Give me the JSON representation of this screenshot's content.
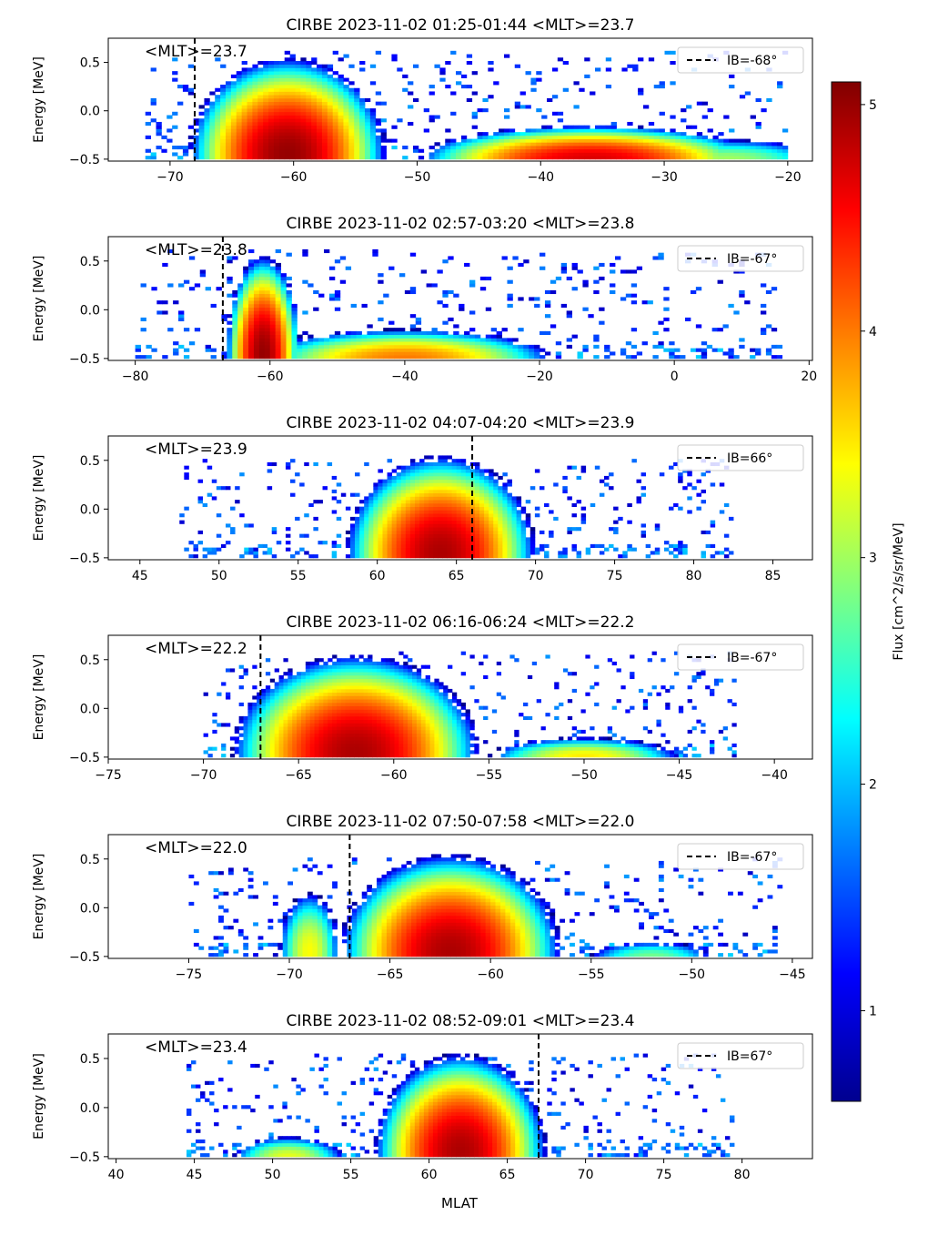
{
  "figure": {
    "shared_xlabel": "MLAT",
    "ylabel": "Energy [MeV]",
    "colorbar": {
      "label": "Flux [cm^2/s/sr/MeV]",
      "ticks": [
        "1",
        "2",
        "3",
        "4",
        "5"
      ],
      "tick_values": [
        1,
        2,
        3,
        4,
        5
      ],
      "range": [
        0.6,
        5.1
      ],
      "colormap": "jet"
    },
    "colors": {
      "ib_line": "#000000",
      "axes": "#000000",
      "background": "#ffffff"
    }
  },
  "chart_data": [
    {
      "type": "heatmap",
      "title": "CIRBE 2023-11-02 01:25-01:44 <MLT>=23.7",
      "annotation": "<MLT>=23.7",
      "legend": "IB=-68°",
      "legend_position": "top-right",
      "ylabel": "Energy [MeV]",
      "xlim": [
        -75,
        -18
      ],
      "ylim": [
        -0.52,
        0.75
      ],
      "xticks": [
        -70,
        -60,
        -50,
        -40,
        -30,
        -20
      ],
      "xtick_labels": [
        "−70",
        "−60",
        "−50",
        "−40",
        "−30",
        "−20"
      ],
      "yticks": [
        -0.5,
        0.0,
        0.5
      ],
      "ytick_labels": [
        "−0.5",
        "0.0",
        "0.5"
      ],
      "ib_mlat": -68,
      "mlat_range": [
        -72,
        -20
      ],
      "blobs": [
        {
          "x": -60.5,
          "y": -0.45,
          "rx": 8,
          "ry": 1.0,
          "max": 5.0
        },
        {
          "x": -36,
          "y": -0.5,
          "rx": 14,
          "ry": 0.35,
          "max": 4.7
        },
        {
          "x": -25,
          "y": -0.5,
          "rx": 8,
          "ry": 0.2,
          "max": 3.0
        }
      ],
      "noise": {
        "x": [
          -72,
          -20
        ],
        "ymax": 0.65,
        "level": 1.1
      }
    },
    {
      "type": "heatmap",
      "title": "CIRBE 2023-11-02 02:57-03:20 <MLT>=23.8",
      "annotation": "<MLT>=23.8",
      "legend": "IB=-67°",
      "legend_position": "top-right",
      "ylabel": "Energy [MeV]",
      "xlim": [
        -84,
        20.5
      ],
      "ylim": [
        -0.52,
        0.75
      ],
      "xticks": [
        -80,
        -60,
        -40,
        -20,
        0,
        20
      ],
      "xtick_labels": [
        "−80",
        "−60",
        "−40",
        "−20",
        "0",
        "20"
      ],
      "yticks": [
        -0.5,
        0.0,
        0.5
      ],
      "ytick_labels": [
        "−0.5",
        "0.0",
        "0.5"
      ],
      "ib_mlat": -67,
      "mlat_range": [
        -80,
        16
      ],
      "blobs": [
        {
          "x": -61,
          "y": -0.45,
          "rx": 5.5,
          "ry": 1.0,
          "max": 5.0
        },
        {
          "x": -40,
          "y": -0.5,
          "rx": 22,
          "ry": 0.3,
          "max": 4.0
        }
      ],
      "noise": {
        "x": [
          -80,
          -16
        ],
        "ymax": 0.65,
        "level": 1.1
      }
    },
    {
      "type": "heatmap",
      "title": "CIRBE 2023-11-02 04:07-04:20 <MLT>=23.9",
      "annotation": "<MLT>=23.9",
      "legend": "IB=66°",
      "legend_position": "top-right",
      "ylabel": "Energy [MeV]",
      "xlim": [
        43,
        87.5
      ],
      "ylim": [
        -0.52,
        0.75
      ],
      "xticks": [
        45,
        50,
        55,
        60,
        65,
        70,
        75,
        80,
        85
      ],
      "xtick_labels": [
        "45",
        "50",
        "55",
        "60",
        "65",
        "70",
        "75",
        "80",
        "85"
      ],
      "yticks": [
        -0.5,
        0.0,
        0.5
      ],
      "ytick_labels": [
        "−0.5",
        "0.0",
        "0.5"
      ],
      "ib_mlat": 66,
      "mlat_range": [
        47.5,
        82.5
      ],
      "blobs": [
        {
          "x": 64,
          "y": -0.45,
          "rx": 6,
          "ry": 1.0,
          "max": 4.9
        }
      ],
      "noise": {
        "x": [
          47.5,
          82.5
        ],
        "ymax": 0.5,
        "level": 1.1
      }
    },
    {
      "type": "heatmap",
      "title": "CIRBE 2023-11-02 06:16-06:24 <MLT>=22.2",
      "annotation": "<MLT>=22.2",
      "legend": "IB=-67°",
      "legend_position": "top-right",
      "ylabel": "Energy [MeV]",
      "xlim": [
        -75,
        -38
      ],
      "ylim": [
        -0.52,
        0.75
      ],
      "xticks": [
        -75,
        -70,
        -65,
        -60,
        -55,
        -50,
        -45,
        -40
      ],
      "xtick_labels": [
        "−75",
        "−70",
        "−65",
        "−60",
        "−55",
        "−50",
        "−45",
        "−40"
      ],
      "yticks": [
        -0.5,
        0.0,
        0.5
      ],
      "ytick_labels": [
        "−0.5",
        "0.0",
        "0.5"
      ],
      "ib_mlat": -67,
      "mlat_range": [
        -70,
        -42
      ],
      "blobs": [
        {
          "x": -62,
          "y": -0.45,
          "rx": 6.5,
          "ry": 1.0,
          "max": 4.9
        },
        {
          "x": -50,
          "y": -0.5,
          "rx": 5,
          "ry": 0.2,
          "max": 3.5
        }
      ],
      "noise": {
        "x": [
          -70,
          -42
        ],
        "ymax": 0.6,
        "level": 1.1
      }
    },
    {
      "type": "heatmap",
      "title": "CIRBE 2023-11-02 07:50-07:58 <MLT>=22.0",
      "annotation": "<MLT>=22.0",
      "legend": "IB=-67°",
      "legend_position": "top-right",
      "ylabel": "Energy [MeV]",
      "xlim": [
        -79,
        -44
      ],
      "ylim": [
        -0.52,
        0.75
      ],
      "xticks": [
        -75,
        -70,
        -65,
        -60,
        -55,
        -50,
        -45
      ],
      "xtick_labels": [
        "−75",
        "−70",
        "−65",
        "−60",
        "−55",
        "−50",
        "−45"
      ],
      "yticks": [
        -0.5,
        0.0,
        0.5
      ],
      "ytick_labels": [
        "−0.5",
        "0.0",
        "0.5"
      ],
      "ib_mlat": -67,
      "mlat_range": [
        -75,
        -45.5
      ],
      "blobs": [
        {
          "x": -62,
          "y": -0.45,
          "rx": 5.5,
          "ry": 1.0,
          "max": 4.9
        },
        {
          "x": -69,
          "y": -0.45,
          "rx": 1.5,
          "ry": 0.6,
          "max": 3.4
        },
        {
          "x": -52,
          "y": -0.5,
          "rx": 3,
          "ry": 0.15,
          "max": 2.8
        }
      ],
      "noise": {
        "x": [
          -75,
          -45.5
        ],
        "ymax": 0.5,
        "level": 1.1
      }
    },
    {
      "type": "heatmap",
      "title": "CIRBE 2023-11-02 08:52-09:01 <MLT>=23.4",
      "annotation": "<MLT>=23.4",
      "legend": "IB=67°",
      "legend_position": "top-right",
      "ylabel": "Energy [MeV]",
      "xlabel": "MLAT",
      "xlim": [
        39.5,
        84.5
      ],
      "ylim": [
        -0.52,
        0.75
      ],
      "xticks": [
        40,
        45,
        50,
        55,
        60,
        65,
        70,
        75,
        80
      ],
      "xtick_labels": [
        "40",
        "45",
        "50",
        "55",
        "60",
        "65",
        "70",
        "75",
        "80"
      ],
      "yticks": [
        -0.5,
        0.0,
        0.5
      ],
      "ytick_labels": [
        "−0.5",
        "0.0",
        "0.5"
      ],
      "ib_mlat": 67,
      "mlat_range": [
        44.5,
        79.5
      ],
      "blobs": [
        {
          "x": 62,
          "y": -0.45,
          "rx": 5.5,
          "ry": 1.0,
          "max": 4.9
        },
        {
          "x": 51,
          "y": -0.5,
          "rx": 3.5,
          "ry": 0.2,
          "max": 3.3
        }
      ],
      "noise": {
        "x": [
          44.5,
          79.5
        ],
        "ymax": 0.55,
        "level": 1.1
      }
    }
  ]
}
